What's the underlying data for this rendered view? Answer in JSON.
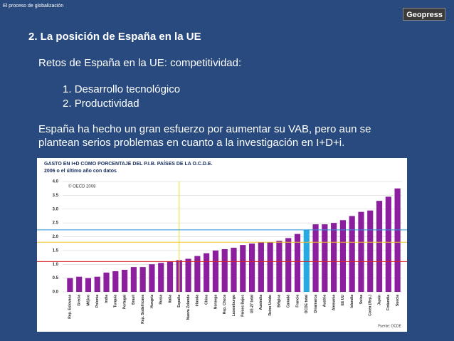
{
  "header": {
    "section": "El proceso de globalización",
    "logo": "Geopress"
  },
  "slide": {
    "title": "2. La posición de España en la UE",
    "subtitle": "Retos de España en la UE: competitividad:",
    "list": [
      {
        "number": "1.",
        "text": "Desarrollo tecnológico"
      },
      {
        "number": "2.",
        "text": "Productividad"
      }
    ],
    "paragraph": "España ha hecho un gran esfuerzo por aumentar su VAB, pero aun se plantean serios problemas en cuanto a la investigación en I+D+i."
  },
  "chart_data": {
    "type": "bar",
    "title": "GASTO EN I+D COMO PORCENTAJE DEL P.I.B. PAÍSES DE LA O.C.D.E.",
    "subtitle": "2006  o el último año con datos",
    "copyright": "© OECD 2008",
    "source": "Fuente: OCDE",
    "categories": [
      "Rep. Eslovaca",
      "Grecia",
      "Méjico",
      "Polonia",
      "India",
      "Turquía",
      "Portugal",
      "Brasil",
      "Rep. Sudafricana",
      "Hungría",
      "Rusia",
      "Italia",
      "España",
      "Nueva Zelanda",
      "Irlanda",
      "China",
      "Noruega",
      "Rep. Checa",
      "Luxemburgo",
      "Países Bajos",
      "UE-27 total",
      "Australia",
      "Reino Unido",
      "Bélgica",
      "Canadá",
      "Francia",
      "OCDE total",
      "Dinamarca",
      "Austria",
      "Alemania",
      "EE UU",
      "Islandia",
      "Suiza",
      "Corea (Rep.)",
      "Japón",
      "Finlandia",
      "Suecia"
    ],
    "values": [
      0.5,
      0.55,
      0.5,
      0.55,
      0.7,
      0.75,
      0.8,
      0.9,
      0.9,
      1.0,
      1.05,
      1.1,
      1.15,
      1.2,
      1.3,
      1.4,
      1.5,
      1.55,
      1.6,
      1.7,
      1.75,
      1.8,
      1.8,
      1.85,
      1.95,
      2.1,
      2.25,
      2.45,
      2.45,
      2.5,
      2.6,
      2.75,
      2.9,
      2.95,
      3.3,
      3.45,
      3.75
    ],
    "color": "#8b1f9e",
    "bar_colors": [
      "#8b1f9e",
      "#8b1f9e",
      "#8b1f9e",
      "#8b1f9e",
      "#8b1f9e",
      "#8b1f9e",
      "#8b1f9e",
      "#8b1f9e",
      "#8b1f9e",
      "#8b1f9e",
      "#8b1f9e",
      "#8b1f9e",
      "#8b1f9e",
      "#8b1f9e",
      "#8b1f9e",
      "#8b1f9e",
      "#8b1f9e",
      "#8b1f9e",
      "#8b1f9e",
      "#8b1f9e",
      "#8b1f9e",
      "#8b1f9e",
      "#8b1f9e",
      "#8b1f9e",
      "#8b1f9e",
      "#8b1f9e",
      "#27a9e1",
      "#8b1f9e",
      "#8b1f9e",
      "#8b1f9e",
      "#8b1f9e",
      "#8b1f9e",
      "#8b1f9e",
      "#8b1f9e",
      "#8b1f9e",
      "#8b1f9e",
      "#8b1f9e"
    ],
    "ylim": [
      0,
      4
    ],
    "yticks": [
      {
        "value": 0,
        "label": "0.0"
      },
      0.5,
      {
        "value": 1,
        "label": "1.0"
      },
      1.5,
      {
        "value": 2,
        "label": "2.0"
      },
      2.5,
      {
        "value": 3,
        "label": "3.0"
      },
      3.5,
      {
        "value": 4,
        "label": "4.0"
      }
    ],
    "grid": true,
    "reference_lines": [
      {
        "value": 2.25,
        "color": "#2a8fd6"
      },
      {
        "value": 1.8,
        "color": "#f0c020"
      },
      {
        "value": 1.1,
        "color": "#d62020"
      }
    ],
    "vertical_line": {
      "category_index": 12,
      "color": "#f3e34a"
    }
  }
}
